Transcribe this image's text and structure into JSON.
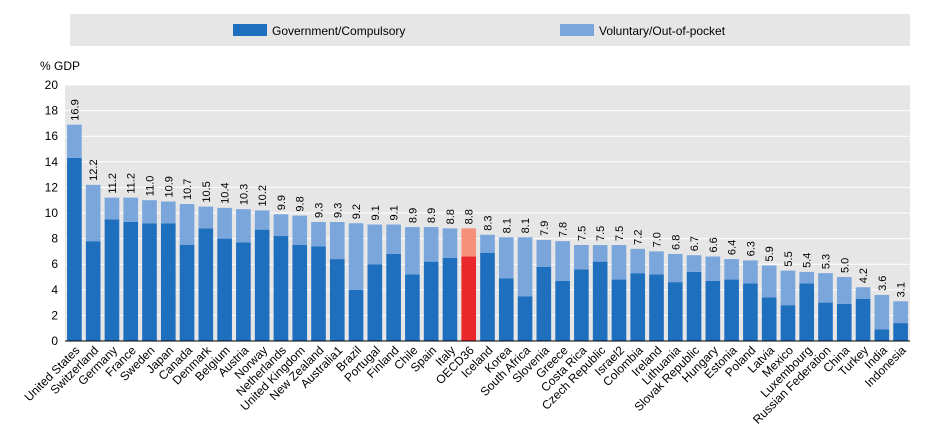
{
  "chart_data": {
    "type": "bar",
    "stacked": true,
    "ylabel": "% GDP",
    "ylim": [
      0,
      20
    ],
    "yticks": [
      0,
      2,
      4,
      6,
      8,
      10,
      12,
      14,
      16,
      18,
      20
    ],
    "grid": true,
    "legend_position": "top",
    "categories": [
      "United States",
      "Switzerland",
      "Germany",
      "France",
      "Sweden",
      "Japan",
      "Canada",
      "Denmark",
      "Belgium",
      "Austria",
      "Norway",
      "Netherlands",
      "United Kingdom",
      "New Zealand",
      "Australia1",
      "Brazil",
      "Portugal",
      "Finland",
      "Chile",
      "Spain",
      "Italy",
      "OECD36",
      "Iceland",
      "Korea",
      "South Africa",
      "Slovenia",
      "Greece",
      "Costa Rica",
      "Czech Republic",
      "Israel2",
      "Colombia",
      "Ireland",
      "Lithuania",
      "Slovak Republic",
      "Hungary",
      "Estonia",
      "Poland",
      "Latvia",
      "Mexico",
      "Luxembourg",
      "Russian Federation",
      "China",
      "Turkey",
      "India",
      "Indonesia"
    ],
    "series": [
      {
        "name": "Government/Compulsory",
        "color": "#1f6fbf",
        "values": [
          14.3,
          7.8,
          9.5,
          9.3,
          9.2,
          9.2,
          7.5,
          8.8,
          8.0,
          7.7,
          8.7,
          8.2,
          7.5,
          7.4,
          6.4,
          4.0,
          6.0,
          6.8,
          5.2,
          6.2,
          6.5,
          6.6,
          6.9,
          4.9,
          3.5,
          5.8,
          4.7,
          5.6,
          6.2,
          4.8,
          5.3,
          5.2,
          4.6,
          5.4,
          4.7,
          4.8,
          4.5,
          3.4,
          2.8,
          4.5,
          3.0,
          2.9,
          3.3,
          0.9,
          1.4
        ]
      },
      {
        "name": "Voluntary/Out-of-pocket",
        "color": "#7aa6dc",
        "values": [
          2.6,
          4.4,
          1.7,
          1.9,
          1.8,
          1.7,
          3.2,
          1.7,
          2.4,
          2.6,
          1.5,
          1.7,
          2.3,
          1.9,
          2.9,
          5.2,
          3.1,
          2.3,
          3.7,
          2.7,
          2.3,
          2.2,
          1.4,
          3.2,
          4.6,
          2.1,
          3.1,
          1.9,
          1.3,
          2.7,
          1.9,
          1.8,
          2.2,
          1.3,
          1.9,
          1.6,
          1.8,
          2.5,
          2.7,
          0.9,
          2.3,
          2.1,
          0.9,
          2.7,
          1.7
        ]
      }
    ],
    "highlight": {
      "category": "OECD36",
      "colors": [
        "#e8282b",
        "#f5917a"
      ]
    },
    "totals": [
      "16.9",
      "12.2",
      "11.2",
      "11.2",
      "11.0",
      "10.9",
      "10.7",
      "10.5",
      "10.4",
      "10.3",
      "10.2",
      "9.9",
      "9.8",
      "9.3",
      "9.3",
      "9.2",
      "9.1",
      "9.1",
      "8.9",
      "8.9",
      "8.8",
      "8.8",
      "8.3",
      "8.1",
      "8.1",
      "7.9",
      "7.8",
      "7.5",
      "7.5",
      "7.5",
      "7.2",
      "7.0",
      "6.8",
      "6.7",
      "6.6",
      "6.4",
      "6.3",
      "5.9",
      "5.5",
      "5.4",
      "5.3",
      "5.0",
      "4.2",
      "3.6",
      "3.1"
    ]
  }
}
